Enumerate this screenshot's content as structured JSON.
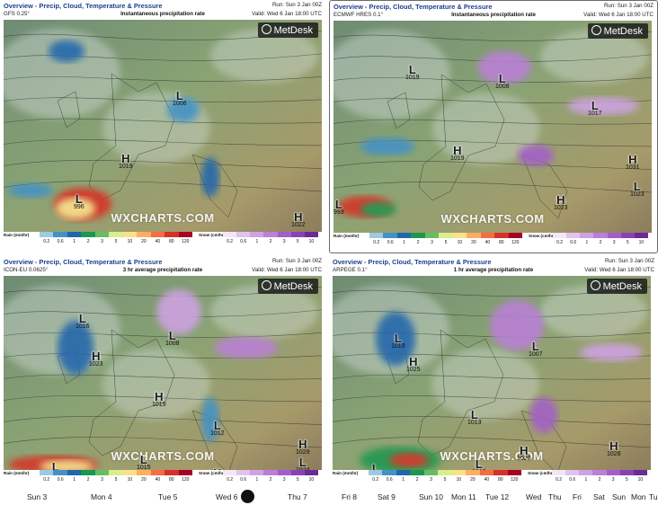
{
  "panels": [
    {
      "title": "Overview - Precip, Cloud, Temperature & Pressure",
      "model": "GFS 0.25°",
      "subtitle": "Instantaneous precipitation rate",
      "run": "Run: Sun 3 Jan 00Z",
      "valid": "Valid: Wed 6 Jan 18:00 UTC",
      "pressure_labels": [
        {
          "t": "L",
          "v": "1006"
        },
        {
          "t": "H",
          "v": "1019"
        },
        {
          "t": "L",
          "v": "996"
        },
        {
          "t": "H",
          "v": "1022"
        }
      ]
    },
    {
      "title": "Overview - Precip, Cloud, Temperature & Pressure",
      "model": "ECMWF HRES 0.1°",
      "subtitle": "Instantaneous precipitation rate",
      "run": "Run: Sun 3 Jan 00Z",
      "valid": "Valid: Wed 6 Jan 18:00 UTC",
      "pressure_labels": [
        {
          "t": "L",
          "v": "1019"
        },
        {
          "t": "L",
          "v": "1008"
        },
        {
          "t": "L",
          "v": "1017"
        },
        {
          "t": "H",
          "v": "1019"
        },
        {
          "t": "H",
          "v": "1031"
        },
        {
          "t": "L",
          "v": "993"
        },
        {
          "t": "H",
          "v": "1023"
        },
        {
          "t": "L",
          "v": "1023"
        }
      ]
    },
    {
      "title": "Overview - Precip, Cloud, Temperature & Pressure",
      "model": "ICON-EU 0.0625°",
      "subtitle": "3 hr average precipitation rate",
      "run": "Run: Sun 3 Jan 00Z",
      "valid": "Valid: Wed 6 Jan 18:00 UTC",
      "pressure_labels": [
        {
          "t": "L",
          "v": "1016"
        },
        {
          "t": "L",
          "v": "1008"
        },
        {
          "t": "H",
          "v": "1023"
        },
        {
          "t": "H",
          "v": "1019"
        },
        {
          "t": "L",
          "v": "1012"
        },
        {
          "t": "H",
          "v": "1029"
        },
        {
          "t": "L",
          "v": "1000"
        },
        {
          "t": "H",
          "v": "1002"
        },
        {
          "t": "L",
          "v": "1015"
        },
        {
          "t": "H",
          "v": "1022"
        },
        {
          "t": "L",
          "v": "1024"
        }
      ]
    },
    {
      "title": "Overview - Precip, Cloud, Temperature & Pressure",
      "model": "ARPEGE 0.1°",
      "subtitle": "1 hr average precipitation rate",
      "run": "Run: Sun 3 Jan 00Z",
      "valid": "Valid: Wed 6 Jan 18:00 UTC",
      "pressure_labels": [
        {
          "t": "L",
          "v": "1019"
        },
        {
          "t": "L",
          "v": "1007"
        },
        {
          "t": "H",
          "v": "1025"
        },
        {
          "t": "L",
          "v": "1013"
        },
        {
          "t": "H",
          "v": "1020"
        },
        {
          "t": "H",
          "v": "1028"
        },
        {
          "t": "L",
          "v": "1013"
        },
        {
          "t": "L",
          "v": "992"
        }
      ]
    }
  ],
  "brand": "MetDesk",
  "watermark": "WXCHARTS.COM",
  "legend": {
    "rain_label": "Rain (mm/hr)",
    "rain_ticks": [
      "0.2",
      "0.6",
      "1",
      "2",
      "3",
      "5",
      "10",
      "20",
      "40",
      "80",
      "120"
    ],
    "snow_label": "Snow (cm/hr)",
    "snow_ticks": [
      "0.2",
      "0.6",
      "1",
      "2",
      "3",
      "5",
      "10"
    ]
  },
  "timeline": [
    "Sun 3",
    "Mon 4",
    "Tue 5",
    "Wed 6",
    "Thu 7",
    "Fri 8",
    "Sat 9",
    "Sun 10",
    "Mon 11",
    "Tue 12",
    "Wed",
    "Thu",
    "Fri",
    "Sat",
    "Sun",
    "Mon",
    "Tu"
  ],
  "colors": {
    "title": "#1b3f8f",
    "rain": [
      "#9ecae1",
      "#4292c6",
      "#2166ac",
      "#1a9850",
      "#66bd63",
      "#d9ef8b",
      "#fee08b",
      "#fdae61",
      "#f46d43",
      "#d73027",
      "#a50026"
    ],
    "snow": [
      "#f2e6f7",
      "#e0c3ee",
      "#cfa2e4",
      "#bb7fd8",
      "#a35ec9",
      "#8a41b6",
      "#6b2a96"
    ]
  }
}
